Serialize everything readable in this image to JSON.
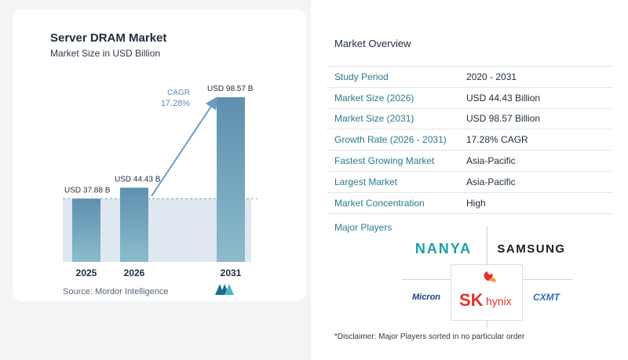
{
  "chart_data": {
    "type": "bar",
    "title": "Server DRAM Market",
    "subtitle": "Market Size in USD Billion",
    "categories": [
      "2025",
      "2026",
      "2031"
    ],
    "values": [
      37.88,
      44.43,
      98.57
    ],
    "value_labels": [
      "USD 37.88 B",
      "USD 44.43 B",
      "USD 98.57 B"
    ],
    "cagr_label": "CAGR",
    "cagr_value": "17.28%",
    "ylim": [
      0,
      100
    ],
    "grid": false,
    "colors": {
      "bar_top": "#5e8fb0",
      "bar_bottom": "#8cbccb",
      "band": "#dfe8f0",
      "arrow": "#6d9cc0",
      "cagr_text": "#5a8fbd",
      "dashed": "#7da3bd"
    }
  },
  "source_text": "Source:",
  "source_name": "Mordor Intelligence",
  "overview": {
    "title": "Market Overview",
    "rows": [
      {
        "key": "Study Period",
        "value": "2020 - 2031"
      },
      {
        "key": "Market Size (2026)",
        "value": "USD 44.43 Billion"
      },
      {
        "key": "Market Size (2031)",
        "value": "USD 98.57 Billion"
      },
      {
        "key": "Growth Rate (2026 - 2031)",
        "value": "17.28% CAGR"
      },
      {
        "key": "Fastest Growing Market",
        "value": "Asia-Pacific"
      },
      {
        "key": "Largest Market",
        "value": "Asia-Pacific"
      },
      {
        "key": "Market Concentration",
        "value": "High"
      }
    ]
  },
  "players": {
    "title": "Major Players",
    "logos": [
      "NANYA",
      "SAMSUNG",
      "Micron",
      "SK hynix",
      "CXMT"
    ]
  },
  "disclaimer": "*Disclaimer: Major Players sorted in no particular order"
}
